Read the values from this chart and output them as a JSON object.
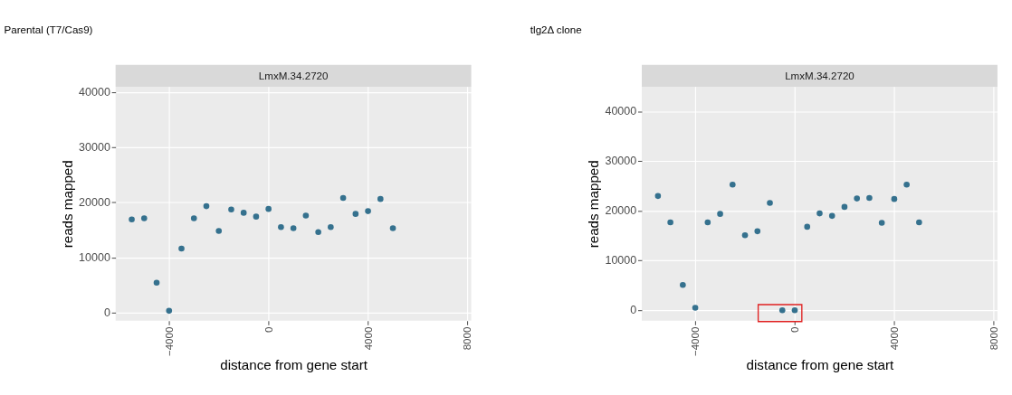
{
  "chart_data": [
    {
      "type": "scatter",
      "title": "Parental (T7/Cas9)",
      "subtitle": "LmxM.34.2720",
      "xlabel": "distance from gene start",
      "ylabel": "reads mapped",
      "x": [
        -5500,
        -5000,
        -4500,
        -4000,
        -3500,
        -3000,
        -2500,
        -2000,
        -1500,
        -1000,
        -500,
        0,
        500,
        1000,
        1500,
        2000,
        2500,
        3000,
        3500,
        4000,
        4500,
        5000
      ],
      "series": [
        {
          "color": "#35718e",
          "values": [
            16900,
            17100,
            5400,
            300,
            11600,
            17100,
            19300,
            14800,
            18700,
            18100,
            17400,
            18800,
            15500,
            15300,
            17600,
            14600,
            15500,
            20800,
            17900,
            18400,
            20600,
            15300
          ]
        }
      ],
      "xlim": [
        -6150,
        8150
      ],
      "xticks": [
        -4000,
        0,
        4000,
        8000
      ],
      "ylim": [
        -1500,
        41000
      ],
      "yticks": [
        0,
        10000,
        20000,
        30000,
        40000
      ],
      "grid": true,
      "marker": "circle"
    },
    {
      "type": "scatter",
      "title": "tlg2Δ clone",
      "subtitle": "LmxM.34.2720",
      "xlabel": "distance from gene start",
      "ylabel": "reads mapped",
      "x": [
        -5500,
        -5000,
        -4500,
        -4000,
        -3500,
        -3000,
        -2500,
        -2000,
        -1500,
        -1000,
        -500,
        0,
        500,
        1000,
        1500,
        2000,
        2500,
        3000,
        3500,
        4000,
        4500,
        5000
      ],
      "series": [
        {
          "color": "#35718e",
          "values": [
            23000,
            17700,
            5100,
            500,
            17700,
            19400,
            25300,
            15100,
            15900,
            21600,
            0,
            0,
            16800,
            19500,
            19000,
            20800,
            22500,
            22600,
            17600,
            22400,
            25300,
            17700
          ]
        }
      ],
      "xlim": [
        -6150,
        8150
      ],
      "xticks": [
        -4000,
        0,
        4000,
        8000
      ],
      "ylim": [
        -2100,
        45000
      ],
      "yticks": [
        0,
        10000,
        20000,
        30000,
        40000
      ],
      "grid": true,
      "marker": "circle"
    }
  ]
}
